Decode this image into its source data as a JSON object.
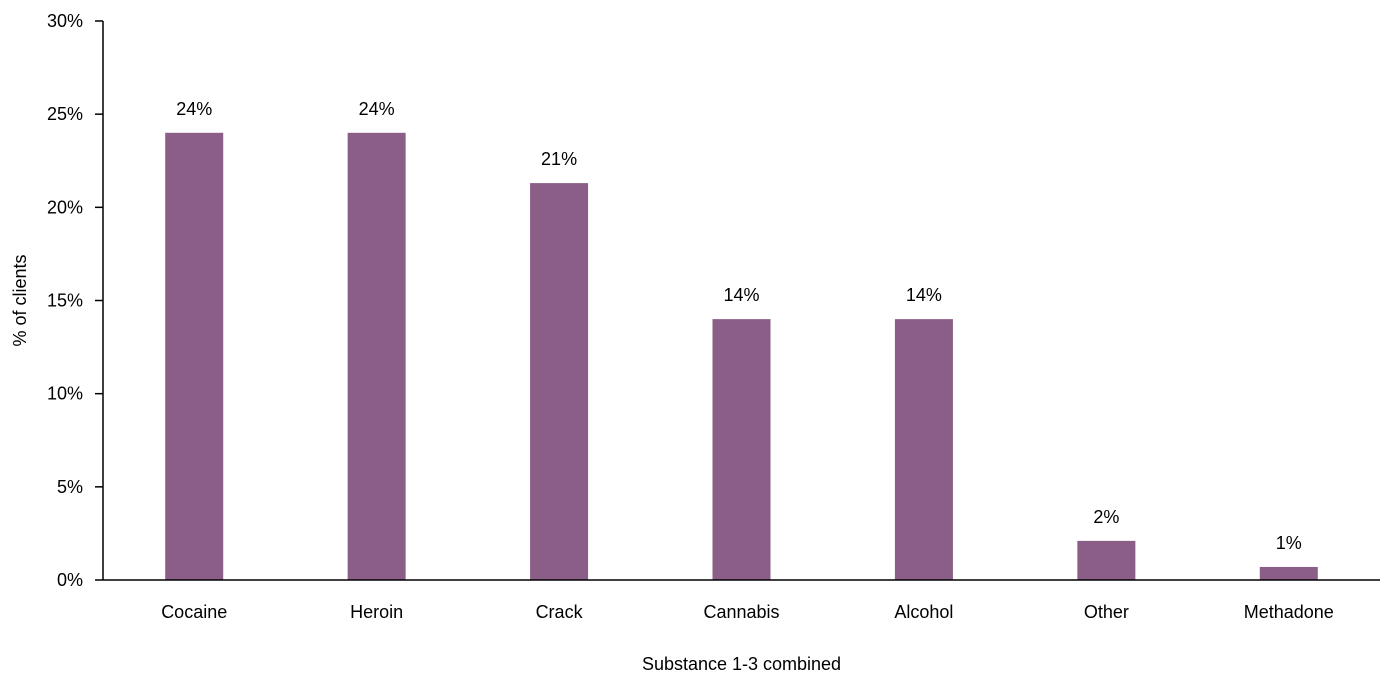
{
  "chart_data": {
    "type": "bar",
    "categories": [
      "Cocaine",
      "Heroin",
      "Crack",
      "Cannabis",
      "Alcohol",
      "Other",
      "Methadone"
    ],
    "values": [
      24,
      24,
      21.3,
      14,
      14,
      2.1,
      0.7
    ],
    "data_labels": [
      "24%",
      "24%",
      "21%",
      "14%",
      "14%",
      "2%",
      "1%"
    ],
    "title": "",
    "xlabel": "Substance 1-3 combined",
    "ylabel": "% of clients",
    "ylim": [
      0,
      30
    ],
    "yticks": [
      0,
      5,
      10,
      15,
      20,
      25,
      30
    ],
    "ytick_labels": [
      "0%",
      "5%",
      "10%",
      "15%",
      "20%",
      "25%",
      "30%"
    ],
    "bar_color": "#8B5E87",
    "grid": false,
    "legend": "none"
  }
}
